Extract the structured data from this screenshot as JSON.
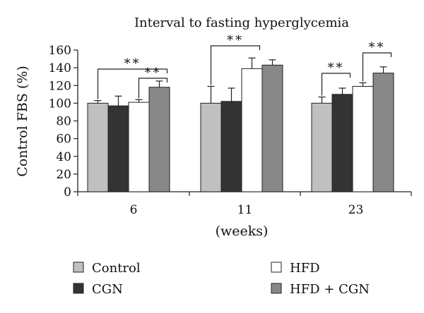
{
  "chart_data": {
    "type": "bar",
    "title": "Interval to fasting hyperglycemia",
    "xlabel": "(weeks)",
    "ylabel": "Control FBS (%)",
    "ylim": [
      0,
      160
    ],
    "yticks": [
      0,
      20,
      40,
      60,
      80,
      100,
      120,
      140,
      160
    ],
    "categories": [
      "6",
      "11",
      "23"
    ],
    "grid": false,
    "legend_position": "bottom",
    "series": [
      {
        "name": "Control",
        "color": "#c0c0c0",
        "values": [
          100,
          100,
          100
        ],
        "errors": [
          3,
          19,
          7
        ]
      },
      {
        "name": "CGN",
        "color": "#333333",
        "values": [
          97,
          102,
          110
        ],
        "errors": [
          11,
          15,
          7
        ]
      },
      {
        "name": "HFD",
        "color": "#ffffff",
        "values": [
          101,
          139,
          119
        ],
        "errors": [
          3,
          12,
          4
        ]
      },
      {
        "name": "HFD + CGN",
        "color": "#888888",
        "values": [
          118,
          143,
          134
        ],
        "errors": [
          7,
          6,
          7
        ]
      }
    ],
    "significance": [
      {
        "group": "6",
        "label": "**",
        "from_series": "Control",
        "to_series": "HFD + CGN"
      },
      {
        "group": "6",
        "label": "**",
        "from_series": "HFD",
        "to_series": "HFD + CGN"
      },
      {
        "group": "11",
        "label": "**",
        "from_series": "Control",
        "to_series": "HFD"
      },
      {
        "group": "23",
        "label": "**",
        "from_series": "Control",
        "to_series": "CGN"
      },
      {
        "group": "23",
        "label": "**",
        "from_series": "HFD",
        "to_series": "HFD + CGN"
      }
    ]
  }
}
